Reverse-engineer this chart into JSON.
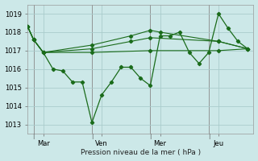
{
  "background_color": "#cce8e8",
  "grid_color": "#aacccc",
  "line_color": "#1a6b1a",
  "marker_color": "#1a6b1a",
  "xlabel": "Pression niveau de la mer ( hPa )",
  "ylim": [
    1012.5,
    1019.5
  ],
  "yticks": [
    1013,
    1014,
    1015,
    1016,
    1017,
    1018,
    1019
  ],
  "xtick_labels": [
    "Mar",
    "Ven",
    "Mer",
    "Jeu"
  ],
  "xtick_positions": [
    8,
    38,
    68,
    98
  ],
  "xlim": [
    0,
    116
  ],
  "vline_x": [
    3,
    33,
    63,
    93
  ],
  "series_main": {
    "x": [
      0,
      3,
      8,
      13,
      18,
      23,
      28,
      33,
      38,
      43,
      48,
      53,
      58,
      63,
      68,
      73,
      78,
      83,
      88,
      93,
      98,
      103,
      108,
      113
    ],
    "y": [
      1018.3,
      1017.6,
      1016.9,
      1016.0,
      1015.9,
      1015.3,
      1015.3,
      1013.1,
      1014.6,
      1015.3,
      1016.1,
      1016.1,
      1015.5,
      1015.1,
      1017.8,
      1017.8,
      1018.0,
      1016.9,
      1016.3,
      1016.9,
      1019.0,
      1018.2,
      1017.5,
      1017.1
    ]
  },
  "series_flat": [
    {
      "x": [
        0,
        3,
        8,
        33,
        63,
        98,
        113
      ],
      "y": [
        1018.3,
        1017.6,
        1016.9,
        1016.9,
        1017.0,
        1017.0,
        1017.1
      ]
    },
    {
      "x": [
        0,
        3,
        8,
        33,
        53,
        63,
        98,
        113
      ],
      "y": [
        1018.3,
        1017.6,
        1016.9,
        1017.1,
        1017.5,
        1017.7,
        1017.5,
        1017.1
      ]
    },
    {
      "x": [
        0,
        3,
        8,
        33,
        53,
        63,
        68,
        98,
        113
      ],
      "y": [
        1018.3,
        1017.6,
        1016.9,
        1017.3,
        1017.8,
        1018.1,
        1018.0,
        1017.5,
        1017.1
      ]
    }
  ]
}
